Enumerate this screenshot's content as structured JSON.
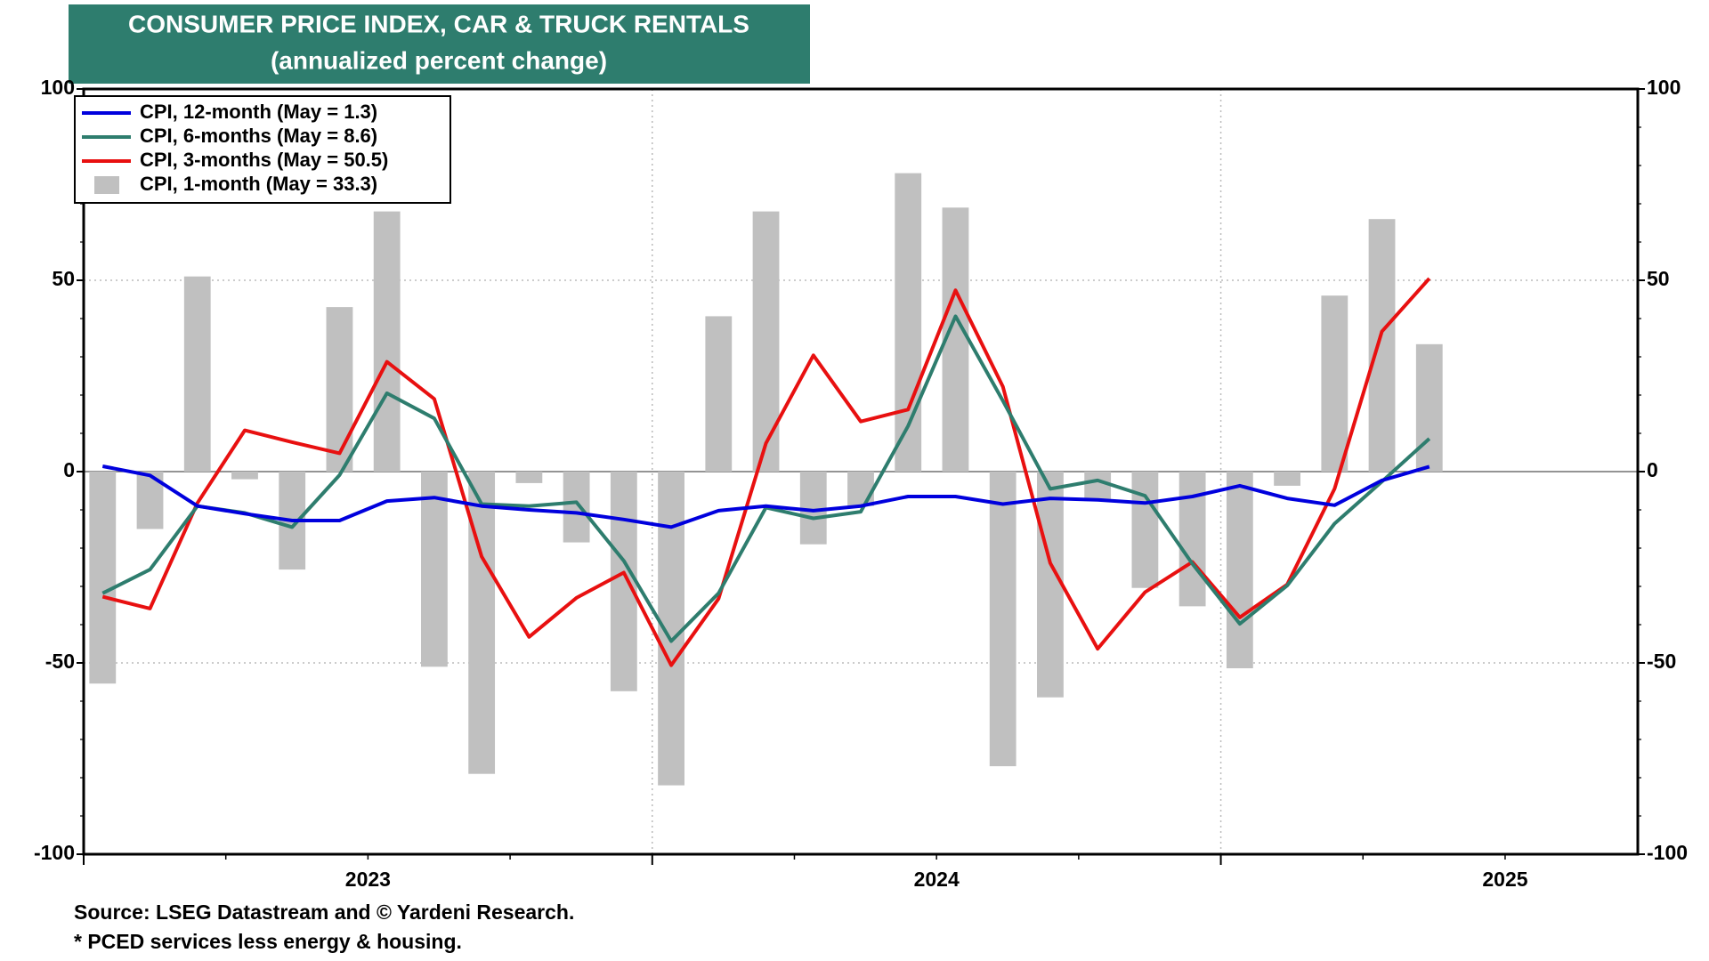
{
  "chart_data": {
    "type": "combo",
    "title": "CONSUMER PRICE INDEX, CAR & TRUCK RENTALS",
    "subtitle": "(annualized percent change)",
    "categories": [
      null,
      null,
      null,
      null,
      null,
      null,
      null,
      null,
      null,
      null,
      null,
      null,
      null,
      null,
      null,
      null,
      null,
      null,
      null,
      null,
      null,
      null,
      null,
      null,
      null,
      null,
      null,
      null,
      null
    ],
    "xlabels": [
      "2023",
      "2024",
      "2025"
    ],
    "ylim": [
      -100,
      100
    ],
    "yticks": [
      -100,
      -50,
      0,
      50,
      100
    ],
    "y2lim": [
      -100,
      100
    ],
    "y2ticks": [
      -100,
      -50,
      0,
      50,
      100
    ],
    "grid": true,
    "legend": "upper left",
    "series": [
      {
        "name": "CPI, 12-month (May = 1.3)",
        "type": "line",
        "color": "#0000dd",
        "values": [
          1.4,
          -1,
          -9,
          -11,
          -12.8,
          -12.8,
          -7.7,
          -6.8,
          -9,
          -10,
          -10.8,
          -12.5,
          -14.5,
          -10.2,
          -9,
          -10.2,
          -9,
          -6.5,
          -6.5,
          -8.5,
          -7,
          -7.4,
          -8.2,
          -6.5,
          -3.7,
          -7,
          -8.8,
          -2.3,
          1.3
        ]
      },
      {
        "name": "CPI, 6-months (May = 8.6)",
        "type": "line",
        "color": "#2e7d6e",
        "values": [
          -31.8,
          -25.6,
          -9,
          -10.8,
          -14.5,
          -0.9,
          20.5,
          13.9,
          -8.5,
          -9,
          -8,
          -23.3,
          -44.3,
          -31.8,
          -9.4,
          -12.2,
          -10.5,
          11.9,
          40.6,
          18.5,
          -4.5,
          -2.3,
          -6.3,
          -24.1,
          -39.8,
          -29.8,
          -13.6,
          -2.6,
          8.6
        ]
      },
      {
        "name": "CPI, 3-months (May = 50.5)",
        "type": "line",
        "color": "#e81010",
        "values": [
          -32.7,
          -35.8,
          -8.2,
          10.8,
          7.7,
          4.8,
          28.7,
          19,
          -22.2,
          -43.2,
          -33,
          -26.4,
          -50.6,
          -33.2,
          7.4,
          30.4,
          13.1,
          16.2,
          47.4,
          22.2,
          -23.9,
          -46.3,
          -31.5,
          -23.6,
          -38.1,
          -29.5,
          -4.5,
          36.6,
          50.5
        ]
      },
      {
        "name": "CPI, 1-month (May = 33.3)",
        "type": "bar",
        "color": "#c0c0c0",
        "values": [
          -55.4,
          -15,
          51,
          -2,
          -25.6,
          43,
          68,
          -51,
          -79,
          -3,
          -18.5,
          -57.4,
          -82,
          40.6,
          68,
          -19,
          -9,
          78,
          69,
          -77,
          -59,
          -7.7,
          -30.4,
          -35.2,
          -51.4,
          -3.7,
          46,
          66,
          33.3
        ]
      }
    ],
    "source": "Source: LSEG Datastream and © Yardeni Research.",
    "note": "* PCED services less energy & housing."
  }
}
